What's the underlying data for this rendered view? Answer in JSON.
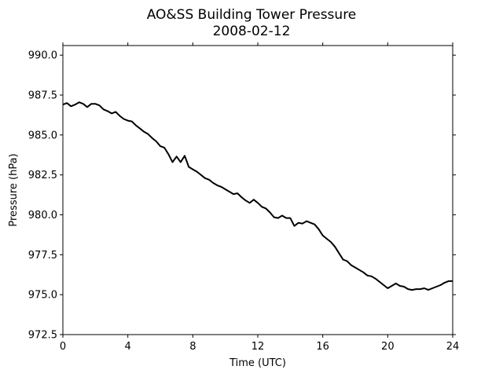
{
  "chart_data": {
    "type": "line",
    "title": "AO&SS Building Tower Pressure",
    "subtitle": "2008-02-12",
    "xlabel": "Time (UTC)",
    "ylabel": "Pressure (hPa)",
    "xlim": [
      0,
      24
    ],
    "ylim": [
      972.5,
      990.6
    ],
    "xticks": [
      0,
      4,
      8,
      12,
      16,
      20,
      24
    ],
    "xtick_labels": [
      "0",
      "4",
      "8",
      "12",
      "16",
      "20",
      "24"
    ],
    "yticks": [
      972.5,
      975.0,
      977.5,
      980.0,
      982.5,
      985.0,
      987.5,
      990.0
    ],
    "ytick_labels": [
      "972.5",
      "975.0",
      "977.5",
      "980.0",
      "982.5",
      "985.0",
      "987.5",
      "990.0"
    ],
    "grid": false,
    "series": [
      {
        "color": "#000000",
        "x": [
          0,
          0.25,
          0.5,
          0.75,
          1.0,
          1.25,
          1.5,
          1.75,
          2.0,
          2.25,
          2.5,
          2.75,
          3.0,
          3.25,
          3.5,
          3.75,
          4.0,
          4.25,
          4.5,
          4.75,
          5.0,
          5.25,
          5.5,
          5.75,
          6.0,
          6.25,
          6.5,
          6.75,
          7.0,
          7.25,
          7.5,
          7.75,
          8.0,
          8.25,
          8.5,
          8.75,
          9.0,
          9.25,
          9.5,
          9.75,
          10.0,
          10.25,
          10.5,
          10.75,
          11.0,
          11.25,
          11.5,
          11.75,
          12.0,
          12.25,
          12.5,
          12.75,
          13.0,
          13.25,
          13.5,
          13.75,
          14.0,
          14.25,
          14.5,
          14.75,
          15.0,
          15.25,
          15.5,
          15.75,
          16.0,
          16.25,
          16.5,
          16.75,
          17.0,
          17.25,
          17.5,
          17.75,
          18.0,
          18.25,
          18.5,
          18.75,
          19.0,
          19.25,
          19.5,
          19.75,
          20.0,
          20.25,
          20.5,
          20.75,
          21.0,
          21.25,
          21.5,
          21.75,
          22.0,
          22.25,
          22.5,
          22.75,
          23.0,
          23.25,
          23.5,
          23.75,
          24.0
        ],
        "y": [
          986.9,
          987.0,
          986.8,
          986.9,
          987.05,
          986.95,
          986.75,
          986.95,
          986.95,
          986.85,
          986.6,
          986.5,
          986.35,
          986.45,
          986.2,
          986.0,
          985.9,
          985.85,
          985.6,
          985.4,
          985.2,
          985.05,
          984.8,
          984.6,
          984.3,
          984.2,
          983.8,
          983.3,
          983.65,
          983.3,
          983.7,
          983.0,
          982.85,
          982.7,
          982.5,
          982.3,
          982.2,
          982.0,
          981.85,
          981.75,
          981.6,
          981.45,
          981.3,
          981.35,
          981.1,
          980.9,
          980.75,
          980.95,
          980.75,
          980.5,
          980.4,
          980.15,
          979.85,
          979.8,
          979.95,
          979.8,
          979.8,
          979.3,
          979.5,
          979.45,
          979.6,
          979.5,
          979.4,
          979.1,
          978.7,
          978.5,
          978.3,
          978.0,
          977.6,
          977.2,
          977.1,
          976.85,
          976.7,
          976.55,
          976.4,
          976.2,
          976.15,
          976.0,
          975.8,
          975.6,
          975.4,
          975.55,
          975.7,
          975.55,
          975.5,
          975.35,
          975.3,
          975.35,
          975.35,
          975.4,
          975.3,
          975.4,
          975.5,
          975.6,
          975.75,
          975.85,
          975.85
        ]
      }
    ]
  }
}
